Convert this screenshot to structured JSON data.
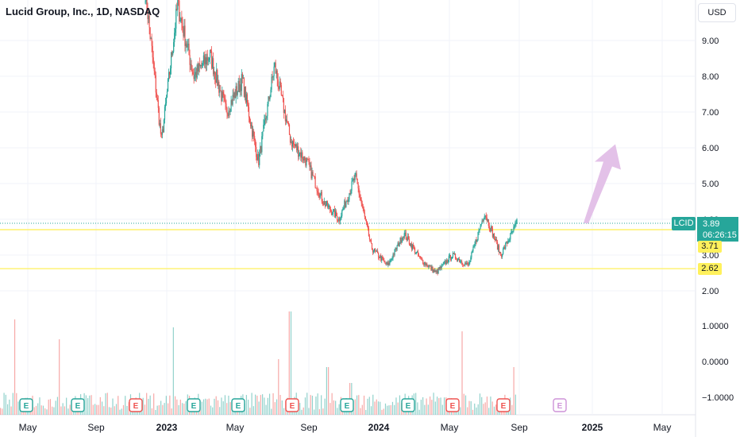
{
  "header": {
    "title": "Lucid Group, Inc., 1D, NASDAQ",
    "currency": "USD"
  },
  "price_axis": {
    "symbol": "LCID",
    "last_price": "3.89",
    "countdown": "06:26:15",
    "level_upper": "3.71",
    "level_lower": "2.62"
  },
  "colors": {
    "up": "#26a69a",
    "down": "#ef5350",
    "level_line": "#fff15c",
    "arrow": "#e1bee7",
    "grid": "#f0f3fa",
    "earnings_up": "#26a69a",
    "earnings_down": "#ef5350",
    "earnings_future": "#ce93d8"
  },
  "chart_data": {
    "type": "candlestick",
    "title": "Lucid Group, Inc., 1D, NASDAQ",
    "y_price_ticks": [
      "2.00",
      "3.00",
      "4.00",
      "5.00",
      "6.00",
      "7.00",
      "8.00",
      "9.00"
    ],
    "y_volume_ticks": [
      "1.0000",
      "0.0000",
      "−1.0000"
    ],
    "x_ticks": [
      "May",
      "Sep",
      "2023",
      "May",
      "Sep",
      "2024",
      "May",
      "Sep",
      "2025",
      "May"
    ],
    "price_range": [
      1.95,
      10.3
    ],
    "price_path_approx": [
      {
        "t": "Nov 2022",
        "close": 10.4
      },
      {
        "t": "Dec 2022",
        "close": 6.2
      },
      {
        "t": "Jan 2023",
        "close": 10.0
      },
      {
        "t": "Feb 2023",
        "close": 8.0
      },
      {
        "t": "Mar 2023",
        "close": 8.6
      },
      {
        "t": "Apr 2023",
        "close": 7.0
      },
      {
        "t": "May 2023",
        "close": 7.9
      },
      {
        "t": "Jun 2023",
        "close": 5.6
      },
      {
        "t": "Jul 2023",
        "close": 8.3
      },
      {
        "t": "Aug 2023",
        "close": 6.2
      },
      {
        "t": "Sep 2023",
        "close": 5.6
      },
      {
        "t": "Oct 2023",
        "close": 4.5
      },
      {
        "t": "Nov 2023",
        "close": 4.0
      },
      {
        "t": "Dec 2023",
        "close": 5.2
      },
      {
        "t": "Jan 2024",
        "close": 3.2
      },
      {
        "t": "Feb 2024",
        "close": 2.7
      },
      {
        "t": "Mar 2024",
        "close": 3.6
      },
      {
        "t": "Apr 2024",
        "close": 2.9
      },
      {
        "t": "May 2024",
        "close": 2.5
      },
      {
        "t": "Jun 2024",
        "close": 3.0
      },
      {
        "t": "Jul 2024",
        "close": 2.7
      },
      {
        "t": "Aug 2024",
        "close": 4.2
      },
      {
        "t": "Sep 2024",
        "close": 3.0
      },
      {
        "t": "Oct 2024",
        "close": 3.89
      }
    ],
    "horizontal_levels": [
      3.71,
      2.62
    ],
    "earnings_markers": [
      {
        "label": "E",
        "result": "up"
      },
      {
        "label": "E",
        "result": "up"
      },
      {
        "label": "E",
        "result": "down"
      },
      {
        "label": "E",
        "result": "up"
      },
      {
        "label": "E",
        "result": "up"
      },
      {
        "label": "E",
        "result": "down"
      },
      {
        "label": "E",
        "result": "up"
      },
      {
        "label": "E",
        "result": "up"
      },
      {
        "label": "E",
        "result": "down"
      },
      {
        "label": "E",
        "result": "down"
      },
      {
        "label": "E",
        "result": "future"
      }
    ],
    "arrow": {
      "from_price": 3.9,
      "to_price": 6.1
    },
    "grid": true
  }
}
